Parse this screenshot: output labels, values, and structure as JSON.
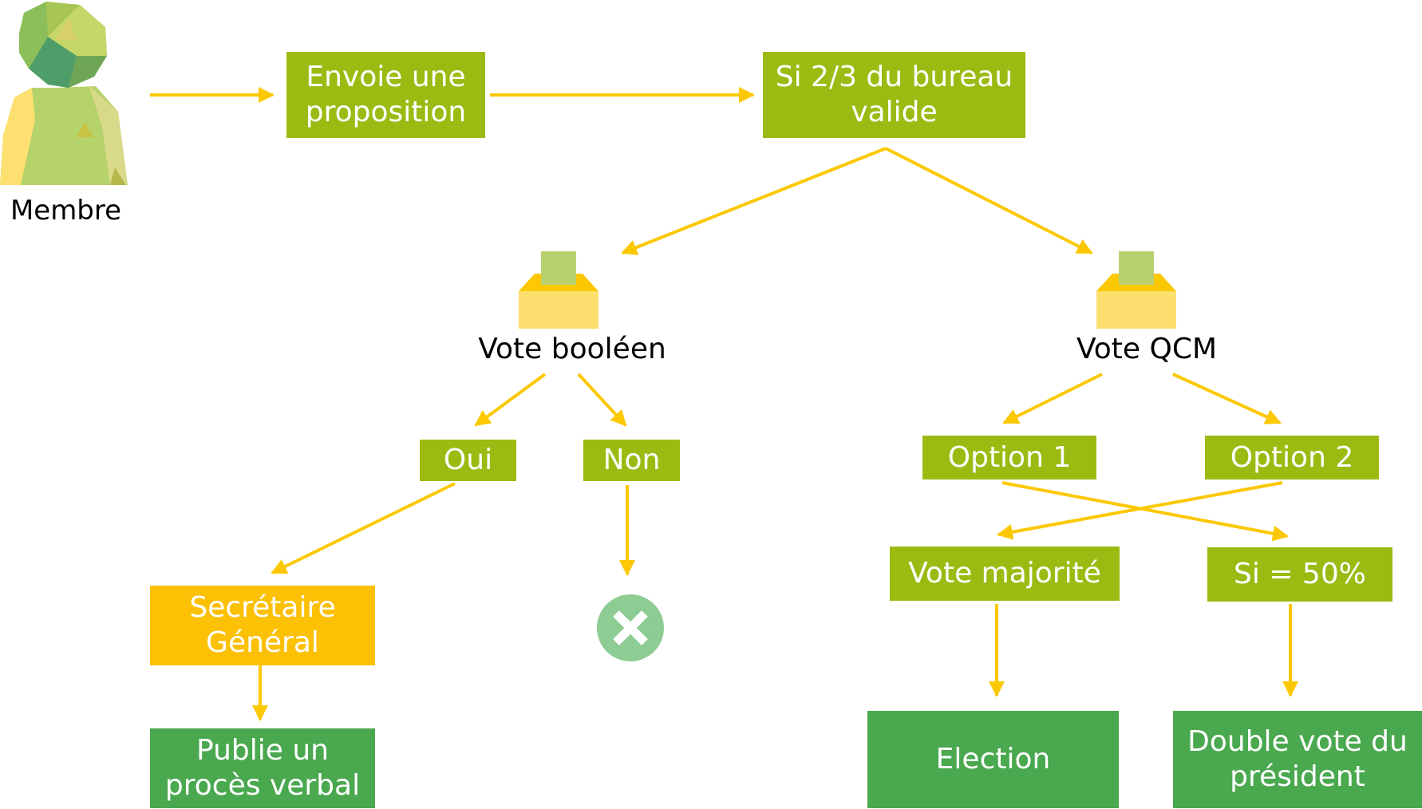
{
  "colors": {
    "arrow": "#fcc804",
    "olive_box": "#9bbb13",
    "gold_box": "#fcc004",
    "green_box": "#4aa84f",
    "reject_circle": "#8dcc93",
    "ballot_box": "#fddf70",
    "ballot_paper": "#b8d16e"
  },
  "actor": {
    "label": "Membre",
    "icon": "member-avatar-icon"
  },
  "nodes": {
    "envoie": "Envoie une\nproposition",
    "si_bureau": "Si 2/3 du bureau\nvalide",
    "vote_booleen": "Vote booléen",
    "vote_qcm": "Vote QCM",
    "oui": "Oui",
    "non": "Non",
    "option1": "Option 1",
    "option2": "Option 2",
    "secretaire": "Secrétaire\nGénéral",
    "publie": "Publie un\nprocès verbal",
    "vote_majorite": "Vote majorité",
    "si_50": "Si = 50%",
    "election": "Election",
    "double_vote": "Double vote du\nprésident"
  },
  "icons": {
    "ballot": "ballot-box-icon",
    "reject": "x-circle-icon"
  }
}
